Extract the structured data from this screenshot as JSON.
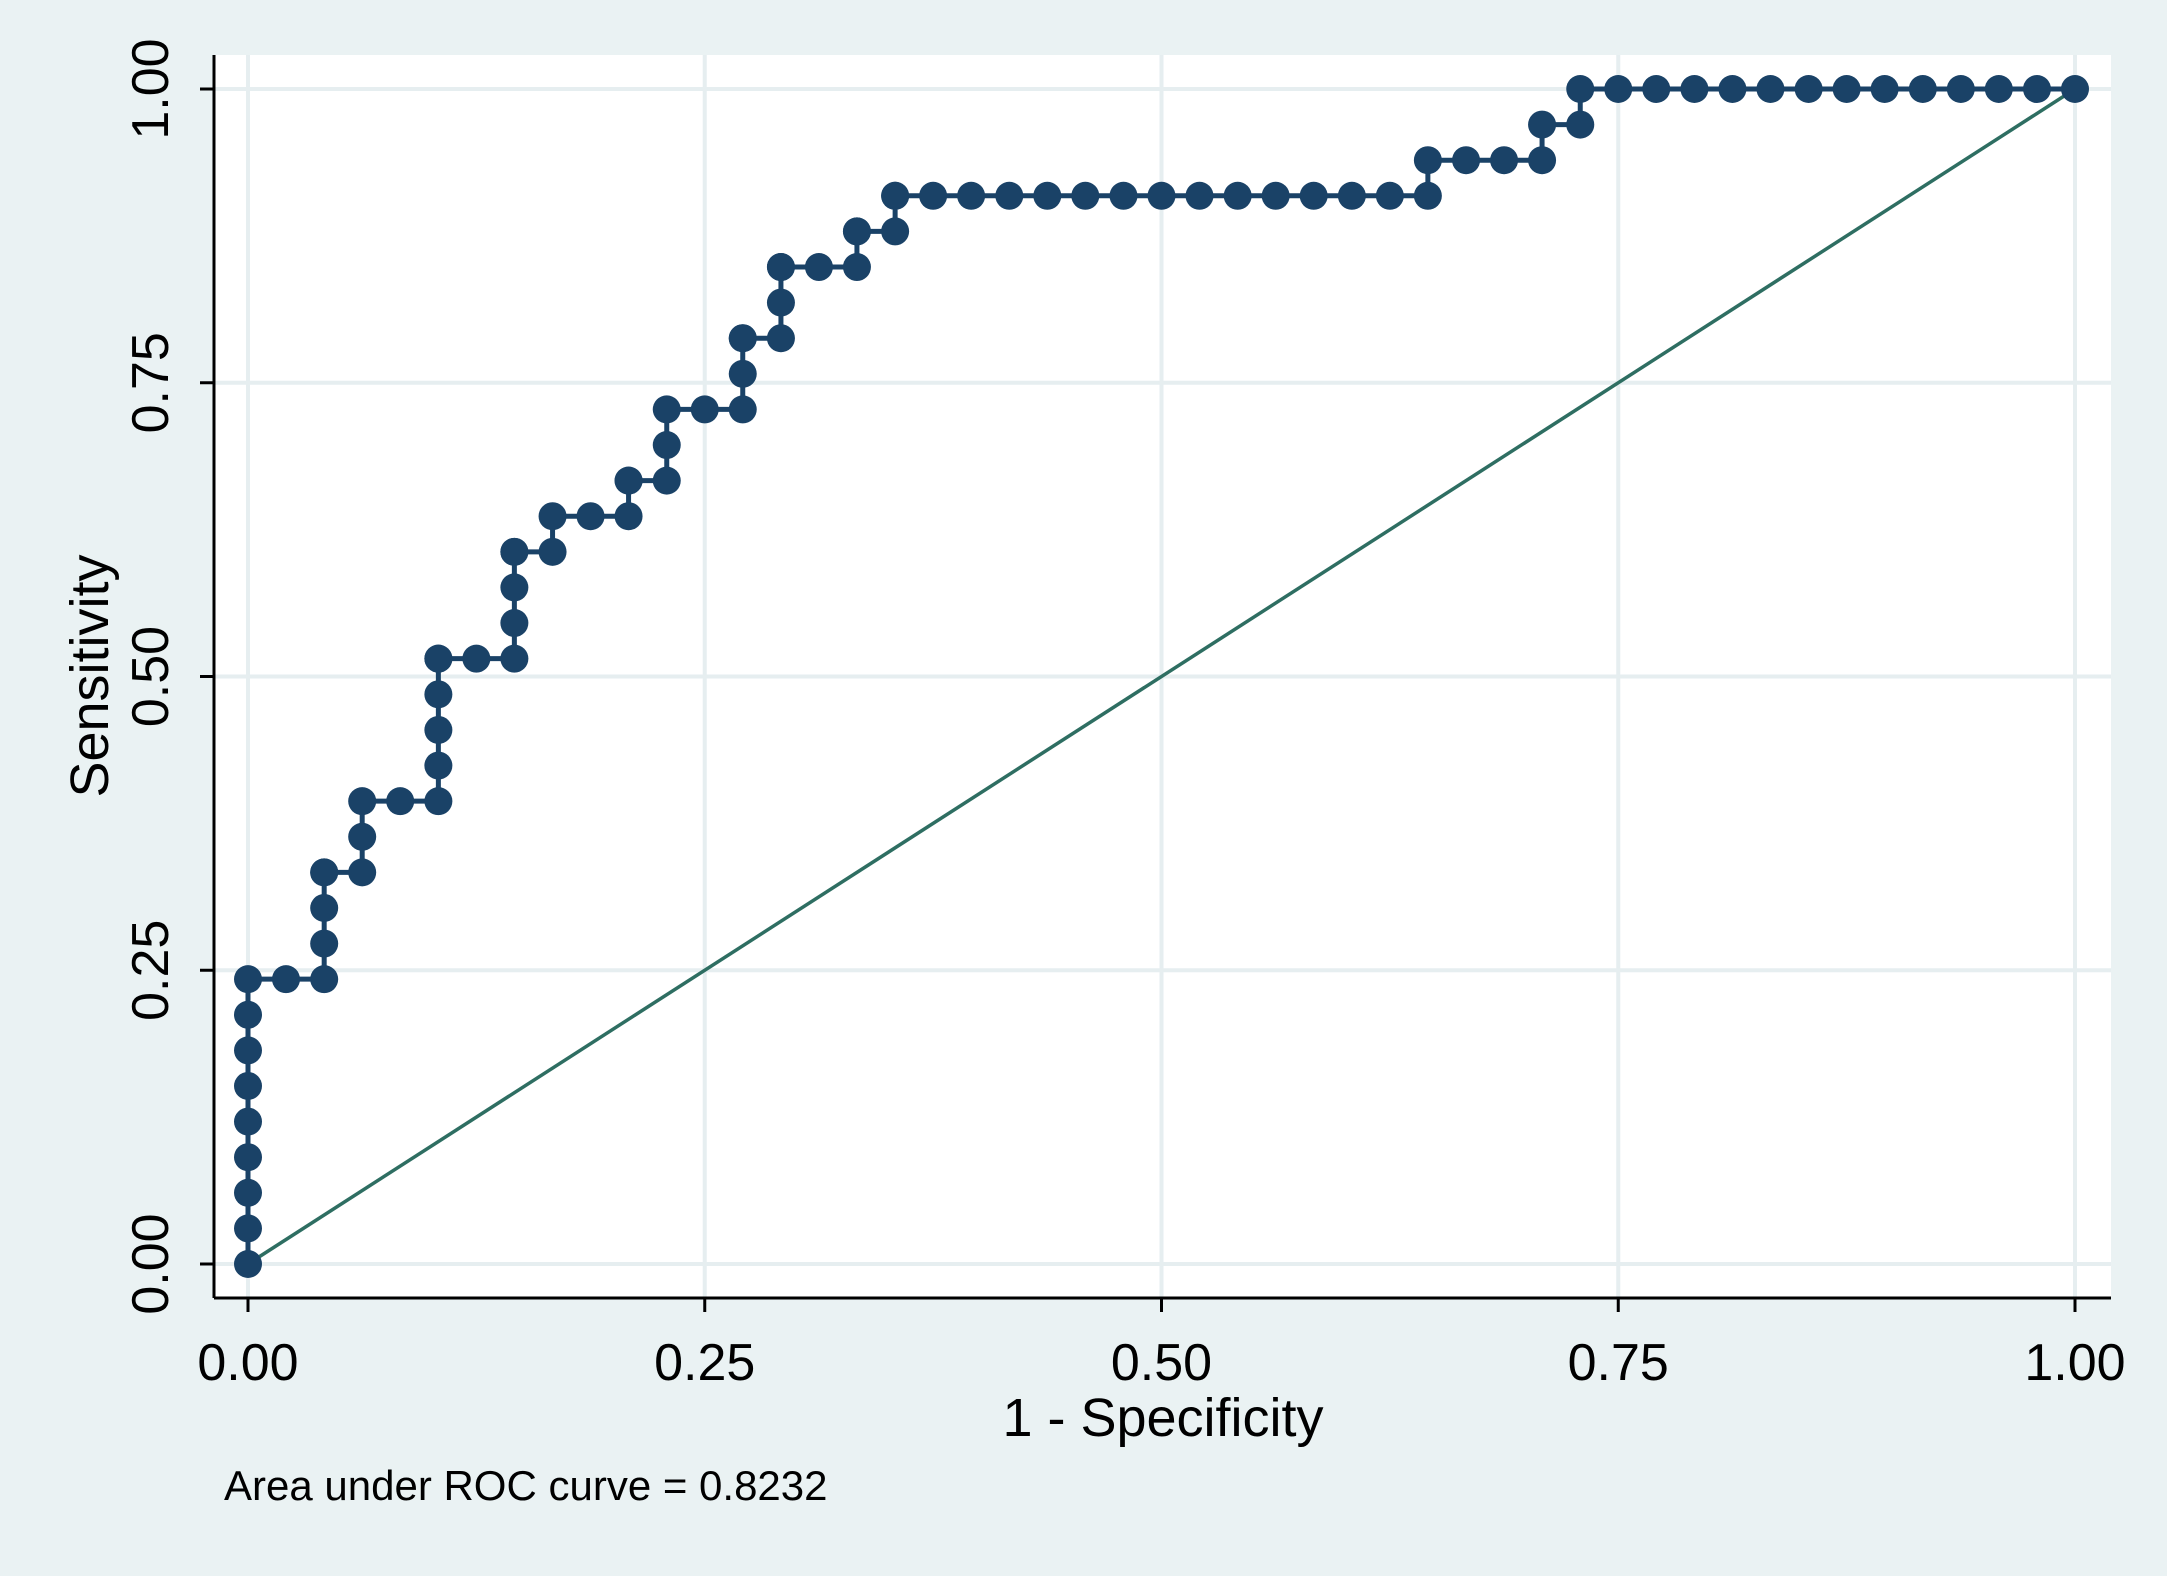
{
  "chart_data": {
    "type": "line",
    "xlabel": "1 - Specificity",
    "ylabel": "Sensitivity",
    "xlim": [
      0,
      1
    ],
    "ylim": [
      0,
      1
    ],
    "xticks": [
      0,
      0.25,
      0.5,
      0.75,
      1
    ],
    "xtick_labels": [
      "0.00",
      "0.25",
      "0.50",
      "0.75",
      "1.00"
    ],
    "yticks": [
      0,
      0.25,
      0.5,
      0.75,
      1
    ],
    "ytick_labels": [
      "0.00",
      "0.25",
      "0.50",
      "0.75",
      "1.00"
    ],
    "grid": true,
    "legend": "none",
    "note": "Area under ROC curve = 0.8232",
    "colors": {
      "background": "#eaf2f3",
      "plot_area": "#ffffff",
      "grid": "#e6eef0",
      "roc": "#1a4267",
      "reference": "#2e6e62"
    },
    "series": [
      {
        "kind": "roc-curve",
        "x": [
          0,
          0,
          0,
          0,
          0,
          0,
          0,
          0,
          0,
          0.0208,
          0.0417,
          0.0417,
          0.0417,
          0.0417,
          0.0417,
          0.0625,
          0.0625,
          0.0625,
          0.0833,
          0.1042,
          0.1042,
          0.1042,
          0.1042,
          0.1042,
          0.1042,
          0.125,
          0.1458,
          0.1458,
          0.1458,
          0.1458,
          0.1458,
          0.1667,
          0.1667,
          0.1875,
          0.2083,
          0.2083,
          0.2083,
          0.2292,
          0.2292,
          0.2292,
          0.25,
          0.2708,
          0.2708,
          0.2708,
          0.2708,
          0.2917,
          0.2917,
          0.2917,
          0.2917,
          0.3125,
          0.3333,
          0.3333,
          0.3333,
          0.3542,
          0.3542,
          0.3542,
          0.375,
          0.3958,
          0.4167,
          0.4375,
          0.4583,
          0.4792,
          0.5,
          0.5208,
          0.5417,
          0.5625,
          0.5833,
          0.6042,
          0.625,
          0.6458,
          0.6458,
          0.6667,
          0.6875,
          0.7083,
          0.7083,
          0.7292,
          0.7292,
          0.75,
          0.7708,
          0.7917,
          0.8125,
          0.8333,
          0.8542,
          0.875,
          0.8958,
          0.9167,
          0.9375,
          0.9583,
          0.9792,
          1
        ],
        "y": [
          0,
          0.0303,
          0.0606,
          0.0909,
          0.1212,
          0.1515,
          0.1818,
          0.2121,
          0.2424,
          0.2424,
          0.2424,
          0.2727,
          0.303,
          0.3333,
          0.3333,
          0.3333,
          0.3636,
          0.3939,
          0.3939,
          0.3939,
          0.4242,
          0.4545,
          0.4848,
          0.5152,
          0.5152,
          0.5152,
          0.5152,
          0.5455,
          0.5758,
          0.6061,
          0.6061,
          0.6061,
          0.6364,
          0.6364,
          0.6364,
          0.6667,
          0.6667,
          0.6667,
          0.697,
          0.7273,
          0.7273,
          0.7273,
          0.7576,
          0.7879,
          0.7879,
          0.7879,
          0.8182,
          0.8485,
          0.8485,
          0.8485,
          0.8485,
          0.8788,
          0.8788,
          0.8788,
          0.9091,
          0.9091,
          0.9091,
          0.9091,
          0.9091,
          0.9091,
          0.9091,
          0.9091,
          0.9091,
          0.9091,
          0.9091,
          0.9091,
          0.9091,
          0.9091,
          0.9091,
          0.9091,
          0.9394,
          0.9394,
          0.9394,
          0.9394,
          0.9697,
          0.9697,
          1,
          1,
          1,
          1,
          1,
          1,
          1,
          1,
          1,
          1,
          1,
          1,
          1,
          1
        ]
      },
      {
        "kind": "reference-line",
        "x": [
          0,
          1
        ],
        "y": [
          0,
          1
        ]
      }
    ]
  }
}
